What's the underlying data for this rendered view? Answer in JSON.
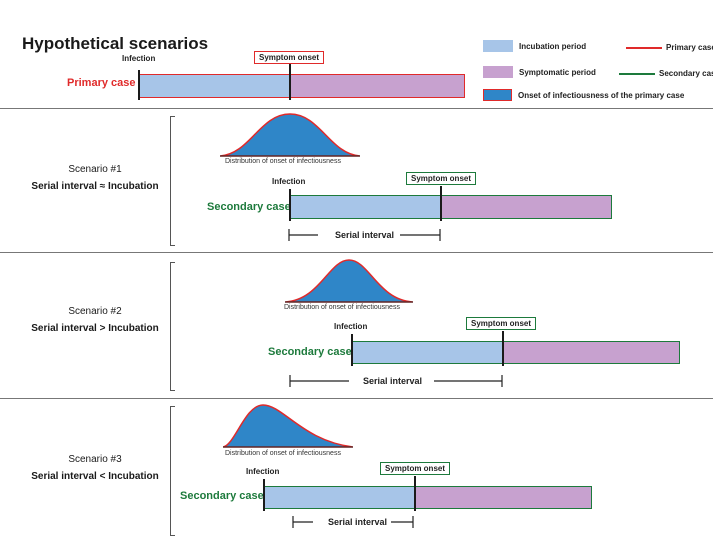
{
  "title": "Hypothetical scenarios",
  "legend": {
    "incubation": "Incubation period",
    "symptomatic": "Symptomatic period",
    "onset_infectiousness": "Onset of infectiousness of the primary case",
    "primary_case": "Primary case",
    "secondary_case": "Secondary case",
    "colors": {
      "incubation": "#a7c5e8",
      "symptomatic": "#c7a1cf",
      "onset_fill": "#2f86c8",
      "primary": "#e02a2a",
      "secondary": "#1d7a3c"
    }
  },
  "primary": {
    "label": "Primary case",
    "infection_label": "Infection",
    "symptom_onset_label": "Symptom onset"
  },
  "scenarios": [
    {
      "name": "Scenario #1",
      "relation": "Serial interval ≈ Incubation",
      "distribution_caption": "Distribution of onset of infectiousness",
      "infection_label": "Infection",
      "symptom_onset_label": "Symptom onset",
      "case_label": "Secondary case",
      "serial_interval_label": "Serial interval"
    },
    {
      "name": "Scenario #2",
      "relation": "Serial interval > Incubation",
      "distribution_caption": "Distribution of onset of infectiousness",
      "infection_label": "Infection",
      "symptom_onset_label": "Symptom onset",
      "case_label": "Secondary case",
      "serial_interval_label": "Serial interval"
    },
    {
      "name": "Scenario #3",
      "relation": "Serial interval < Incubation",
      "distribution_caption": "Distribution of onset of infectiousness",
      "infection_label": "Infection",
      "symptom_onset_label": "Symptom onset",
      "case_label": "Secondary case",
      "serial_interval_label": "Serial interval"
    }
  ]
}
